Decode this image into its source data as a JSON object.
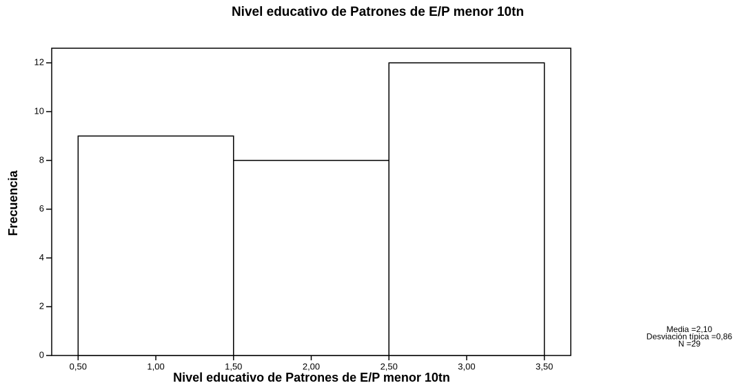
{
  "chart_data": {
    "type": "histogram",
    "title": "Nivel educativo de Patrones de E/P  menor 10tn",
    "x_label": "Nivel educativo de Patrones de E/P  menor 10tn",
    "y_label": "Frecuencia",
    "bins": [
      0.5,
      1.5,
      2.5,
      3.5
    ],
    "values": [
      9,
      8,
      12
    ],
    "color": "#ffffff",
    "xlim": [
      0.33,
      3.67
    ],
    "ylim": [
      0,
      12.6
    ],
    "xticks": [
      {
        "value": 0.5,
        "label": "0,50"
      },
      {
        "value": 1.0,
        "label": "1,00"
      },
      {
        "value": 1.5,
        "label": "1,50"
      },
      {
        "value": 2.0,
        "label": "2,00"
      },
      {
        "value": 2.5,
        "label": "2,50"
      },
      {
        "value": 3.0,
        "label": "3,00"
      },
      {
        "value": 3.5,
        "label": "3,50"
      }
    ],
    "yticks": [
      0,
      2,
      4,
      6,
      8,
      10,
      12
    ],
    "stats": [
      "Media =2,10",
      "Desviación típica =0,86",
      "N =29"
    ]
  }
}
